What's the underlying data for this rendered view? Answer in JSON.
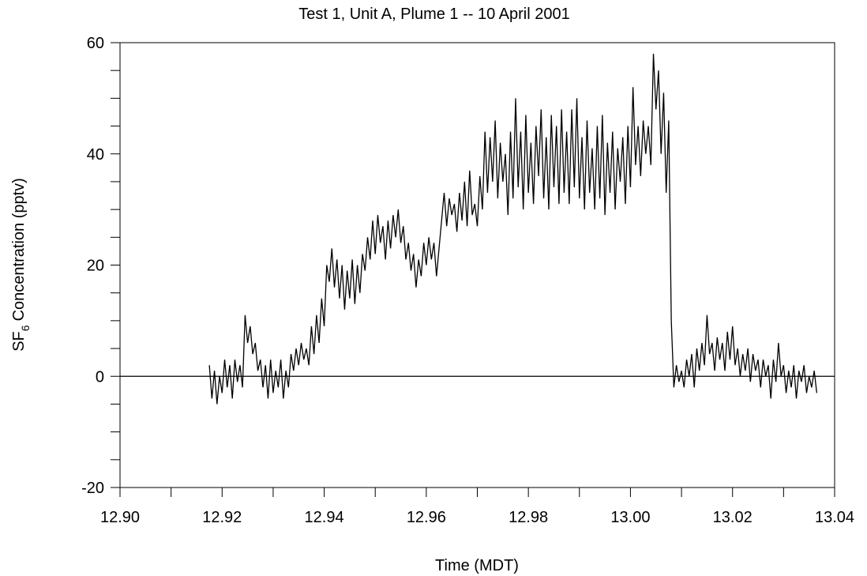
{
  "chart_data": {
    "type": "line",
    "title": "Test 1, Unit A, Plume 1 -- 10 April 2001",
    "xlabel": "Time (MDT)",
    "ylabel": {
      "main": "SF",
      "sub": "6",
      "rest": "Concentration (pptv)"
    },
    "xlim": [
      12.9,
      13.04
    ],
    "ylim": [
      -20,
      60
    ],
    "xticks": [
      {
        "value": 12.9,
        "label": "12.90"
      },
      12.92,
      12.94,
      12.96,
      12.98,
      {
        "value": 13.0,
        "label": "13.00"
      },
      13.02,
      13.04
    ],
    "xminorticks": [
      12.91,
      12.93,
      12.95,
      12.97,
      12.99,
      13.01,
      13.03
    ],
    "yticks": [
      -20,
      0,
      20,
      40,
      60
    ],
    "yminorticks": [
      -15,
      -10,
      -5,
      5,
      10,
      15,
      25,
      30,
      35,
      45,
      50,
      55
    ],
    "zero_line": true,
    "x": [
      12.9175,
      12.918,
      12.9185,
      12.919,
      12.9195,
      12.92,
      12.9205,
      12.921,
      12.9215,
      12.922,
      12.9225,
      12.923,
      12.9235,
      12.924,
      12.9245,
      12.925,
      12.9255,
      12.926,
      12.9265,
      12.927,
      12.9275,
      12.928,
      12.9285,
      12.929,
      12.9295,
      12.93,
      12.9305,
      12.931,
      12.9315,
      12.932,
      12.9325,
      12.933,
      12.9335,
      12.934,
      12.9345,
      12.935,
      12.9355,
      12.936,
      12.9365,
      12.937,
      12.9375,
      12.938,
      12.9385,
      12.939,
      12.9395,
      12.94,
      12.9405,
      12.941,
      12.9415,
      12.942,
      12.9425,
      12.943,
      12.9435,
      12.944,
      12.9445,
      12.945,
      12.9455,
      12.946,
      12.9465,
      12.947,
      12.9475,
      12.948,
      12.9485,
      12.949,
      12.9495,
      12.95,
      12.9505,
      12.951,
      12.9515,
      12.952,
      12.9525,
      12.953,
      12.9535,
      12.954,
      12.9545,
      12.955,
      12.9555,
      12.956,
      12.9565,
      12.957,
      12.9575,
      12.958,
      12.9585,
      12.959,
      12.9595,
      12.96,
      12.9605,
      12.961,
      12.9615,
      12.962,
      12.9625,
      12.963,
      12.9635,
      12.964,
      12.9645,
      12.965,
      12.9655,
      12.966,
      12.9665,
      12.967,
      12.9675,
      12.968,
      12.9685,
      12.969,
      12.9695,
      12.97,
      12.9705,
      12.971,
      12.9715,
      12.972,
      12.9725,
      12.973,
      12.9735,
      12.974,
      12.9745,
      12.975,
      12.9755,
      12.976,
      12.9765,
      12.977,
      12.9775,
      12.978,
      12.9785,
      12.979,
      12.9795,
      12.98,
      12.9805,
      12.981,
      12.9815,
      12.982,
      12.9825,
      12.983,
      12.9835,
      12.984,
      12.9845,
      12.985,
      12.9855,
      12.986,
      12.9865,
      12.987,
      12.9875,
      12.988,
      12.9885,
      12.989,
      12.9895,
      12.99,
      12.9905,
      12.991,
      12.9915,
      12.992,
      12.9925,
      12.993,
      12.9935,
      12.994,
      12.9945,
      12.995,
      12.9955,
      12.996,
      12.9965,
      12.997,
      12.9975,
      12.998,
      12.9985,
      12.999,
      12.9995,
      13.0,
      13.0005,
      13.001,
      13.0015,
      13.002,
      13.0025,
      13.003,
      13.0035,
      13.004,
      13.0045,
      13.005,
      13.0055,
      13.006,
      13.0065,
      13.007,
      13.0075,
      13.008,
      13.0085,
      13.009,
      13.0095,
      13.01,
      13.0105,
      13.011,
      13.0115,
      13.012,
      13.0125,
      13.013,
      13.0135,
      13.014,
      13.0145,
      13.015,
      13.0155,
      13.016,
      13.0165,
      13.017,
      13.0175,
      13.018,
      13.0185,
      13.019,
      13.0195,
      13.02,
      13.0205,
      13.021,
      13.0215,
      13.022,
      13.0225,
      13.023,
      13.0235,
      13.024,
      13.0245,
      13.025,
      13.0255,
      13.026,
      13.0265,
      13.027,
      13.0275,
      13.028,
      13.0285,
      13.029,
      13.0295,
      13.03,
      13.0305,
      13.031,
      13.0315,
      13.032,
      13.0325,
      13.033,
      13.0335,
      13.034,
      13.0345,
      13.035,
      13.0355,
      13.036,
      13.0365
    ],
    "series": [
      {
        "color": "#000000",
        "values": [
          2,
          -4,
          1,
          -5,
          0,
          -3,
          3,
          -2,
          2,
          -4,
          3,
          -1,
          2,
          -2,
          11,
          6,
          9,
          4,
          6,
          1,
          3,
          -2,
          2,
          -4,
          3,
          -3,
          1,
          -2,
          3,
          -4,
          1,
          -2,
          4,
          1,
          5,
          2,
          6,
          3,
          5,
          2,
          9,
          4,
          11,
          6,
          14,
          9,
          20,
          17,
          23,
          16,
          21,
          14,
          20,
          12,
          19,
          14,
          21,
          13,
          20,
          15,
          22,
          19,
          25,
          21,
          28,
          22,
          29,
          24,
          27,
          21,
          28,
          23,
          29,
          25,
          30,
          24,
          27,
          21,
          24,
          19,
          22,
          16,
          21,
          18,
          24,
          20,
          25,
          21,
          24,
          18,
          23,
          28,
          33,
          27,
          32,
          29,
          31,
          26,
          33,
          28,
          35,
          27,
          37,
          29,
          31,
          27,
          36,
          30,
          44,
          33,
          43,
          35,
          46,
          32,
          42,
          35,
          40,
          29,
          44,
          32,
          50,
          34,
          44,
          30,
          47,
          33,
          42,
          31,
          45,
          36,
          48,
          32,
          43,
          30,
          47,
          34,
          45,
          31,
          48,
          33,
          44,
          31,
          48,
          34,
          50,
          32,
          43,
          30,
          46,
          33,
          41,
          30,
          45,
          32,
          47,
          29,
          42,
          33,
          44,
          30,
          41,
          35,
          43,
          31,
          45,
          34,
          52,
          38,
          45,
          36,
          46,
          40,
          45,
          38,
          58,
          48,
          55,
          40,
          51,
          33,
          46,
          10,
          -2,
          2,
          -1,
          1,
          -2,
          3,
          0,
          4,
          -2,
          5,
          1,
          6,
          2,
          11,
          4,
          6,
          1,
          7,
          3,
          6,
          1,
          8,
          3,
          9,
          2,
          5,
          0,
          4,
          1,
          5,
          -1,
          4,
          1,
          3,
          -2,
          3,
          0,
          2,
          -4,
          3,
          -1,
          6,
          0,
          2,
          -3,
          1,
          -2,
          2,
          -4,
          1,
          -1,
          2,
          -3,
          0,
          -2,
          1,
          -3
        ]
      }
    ]
  }
}
